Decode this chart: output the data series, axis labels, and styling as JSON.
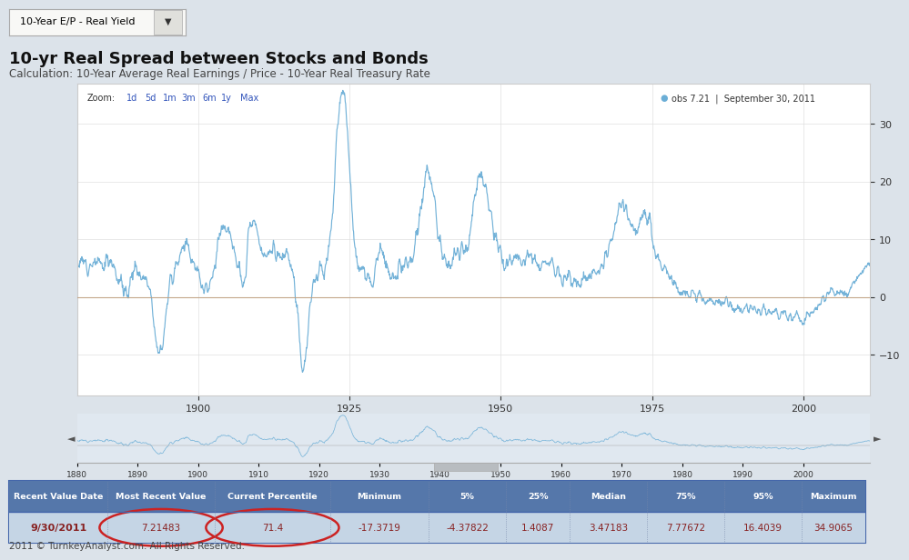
{
  "title": "10-yr Real Spread between Stocks and Bonds",
  "subtitle": "Calculation: 10-Year Average Real Earnings / Price - 10-Year Real Treasury Rate",
  "dropdown_label": "10-Year E/P - Real Yield",
  "obs_label": "obs 7.21  |  September 30, 2011",
  "chart_bg": "#ffffff",
  "outer_bg": "#dce3ea",
  "line_color": "#6baed6",
  "zero_line_color": "#c0a080",
  "ylim": [
    -17,
    37
  ],
  "yticks": [
    -10,
    0,
    10,
    20,
    30
  ],
  "main_xticks": [
    1900,
    1925,
    1950,
    1975,
    2000
  ],
  "nav_xticks": [
    1880,
    1890,
    1900,
    1910,
    1920,
    1930,
    1940,
    1950,
    1960,
    1970,
    1980,
    1990,
    2000
  ],
  "table_headers": [
    "Recent Value Date",
    "Most Recent Value",
    "Current Percentile",
    "Minimum",
    "5%",
    "25%",
    "Median",
    "75%",
    "95%",
    "Maximum"
  ],
  "table_values": [
    "9/30/2011",
    "7.21483",
    "71.4",
    "-17.3719",
    "-4.37822",
    "1.4087",
    "3.47183",
    "7.77672",
    "16.4039",
    "34.9065"
  ],
  "footer": "2011 © TurnkeyAnalyst.com. All Rights Reserved.",
  "header_bg": "#5577aa",
  "header_text": "#ffffff",
  "row_bg": "#c5d5e5",
  "value_text": "#882222",
  "circle_color": "#cc2222",
  "nav_bg": "#e0e8f0",
  "band_color": "#c8d8e8"
}
